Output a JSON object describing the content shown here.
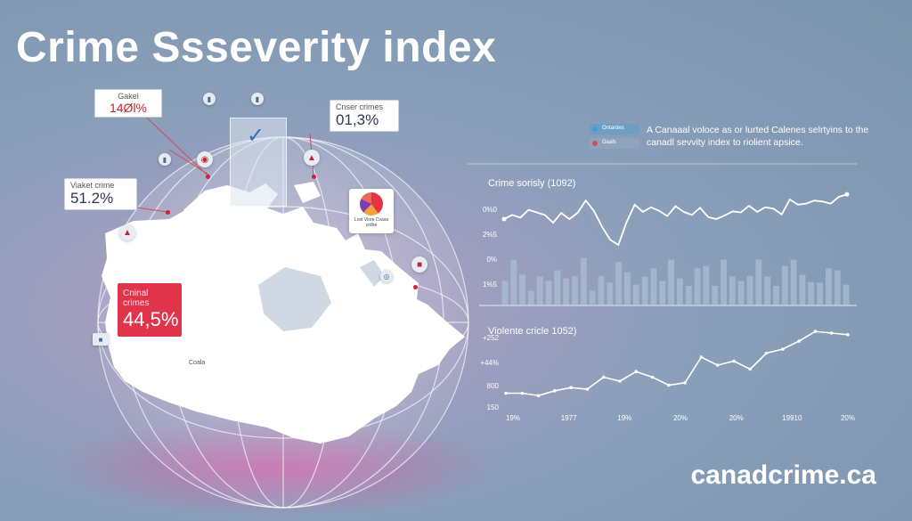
{
  "title": "Crime Ssseverity index",
  "footer_url": "canadcrime.ca",
  "colors": {
    "accent_red": "#e0344b",
    "bar_color": "#a9bed3",
    "line_color": "#ffffff",
    "background": "#8a9fba"
  },
  "cards": {
    "card1": {
      "label": "Gakel",
      "value": "14Øl%"
    },
    "card2": {
      "label": "Cnser crimes",
      "value": "01,3%"
    },
    "card3": {
      "label": "Viaket crime",
      "value": "51.2%"
    },
    "card4": {
      "label": "Cninal crimes",
      "value": "44,5%"
    }
  },
  "map_text": {
    "region": "Coala"
  },
  "pie_card": {
    "label": "Lost Vlore Cvaxa crdlre"
  },
  "legend": {
    "item1": "Ontardes",
    "item2": "Gaals"
  },
  "description": "A Canaaal voloce as or lurted Calenes selrtyins to the canadl sevvity index to riolient apsice.",
  "icons": [
    "bar-chart-icon",
    "map-pin-icon",
    "checkmark-icon",
    "pie-chart-icon",
    "camera-icon",
    "radio-icon"
  ],
  "chart_data": [
    {
      "type": "bar",
      "title": "Crime sorisly (1092)",
      "y_ticks": [
        "0%0",
        "2%5",
        "0%",
        "1%5"
      ],
      "bars": [
        0.38,
        0.72,
        0.48,
        0.22,
        0.45,
        0.38,
        0.55,
        0.42,
        0.45,
        0.75,
        0.22,
        0.46,
        0.35,
        0.68,
        0.52,
        0.32,
        0.45,
        0.58,
        0.38,
        0.72,
        0.42,
        0.3,
        0.58,
        0.62,
        0.3,
        0.72,
        0.45,
        0.38,
        0.46,
        0.72,
        0.45,
        0.3,
        0.62,
        0.72,
        0.48,
        0.36,
        0.35,
        0.58,
        0.55,
        0.32
      ],
      "line": [
        0.62,
        0.7,
        0.65,
        0.8,
        0.75,
        0.7,
        0.55,
        0.74,
        0.62,
        0.74,
        0.98,
        0.78,
        0.47,
        0.22,
        0.12,
        0.56,
        0.9,
        0.76,
        0.85,
        0.78,
        0.68,
        0.87,
        0.76,
        0.7,
        0.84,
        0.66,
        0.62,
        0.69,
        0.77,
        0.75,
        0.88,
        0.76,
        0.85,
        0.82,
        0.71,
        1.0,
        0.9,
        0.92,
        0.98,
        0.96,
        0.92,
        1.05,
        1.1
      ]
    },
    {
      "type": "line",
      "title": "Violente cricle 1052)",
      "y_ticks": [
        "+252",
        "+44%",
        "800",
        "150"
      ],
      "x_ticks": [
        "19%",
        "1977",
        "19%",
        "20%",
        "20%",
        "19910",
        "20%"
      ],
      "values": [
        0.05,
        0.05,
        0.02,
        0.08,
        0.12,
        0.1,
        0.25,
        0.2,
        0.32,
        0.25,
        0.15,
        0.18,
        0.5,
        0.4,
        0.45,
        0.35,
        0.55,
        0.6,
        0.7,
        0.82,
        0.8,
        0.78
      ]
    }
  ]
}
